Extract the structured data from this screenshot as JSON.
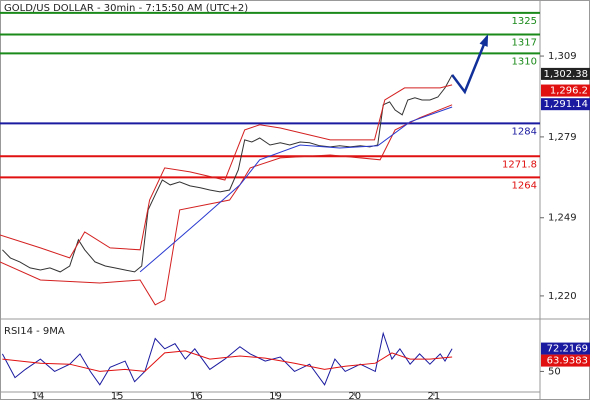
{
  "chart_data": [
    {
      "type": "line",
      "title": "GOLD/US DOLLAR - 30min - 7:15:50 AM (UTC+2)",
      "xlim": [
        -0.48,
        6.34
      ],
      "ylim": [
        1211.8,
        1329.8
      ],
      "yticks": [
        {
          "value": 1309,
          "label": "1,309"
        },
        {
          "value": 1279,
          "label": "1,279"
        },
        {
          "value": 1249,
          "label": "1,249"
        },
        {
          "value": 1220,
          "label": "1,220"
        }
      ],
      "levels": [
        {
          "value": 1325,
          "color": "#1a8a1a"
        },
        {
          "value": 1317,
          "color": "#1a8a1a"
        },
        {
          "value": 1310,
          "color": "#1a8a1a"
        },
        {
          "value": 1284,
          "color": "#1a1aa0"
        },
        {
          "value": 1271.8,
          "color": "#e01010"
        },
        {
          "value": 1264,
          "color": "#e01010"
        }
      ],
      "badges": [
        {
          "value": 1302.38,
          "label": "1,302.38",
          "color": "#222222"
        },
        {
          "value": 1296.2,
          "label": "1,296.2",
          "color": "#e01010"
        },
        {
          "value": 1291.14,
          "label": "1,291.14",
          "color": "#1a1aa0"
        }
      ],
      "series": [
        {
          "color": "#333333",
          "x": [
            -0.45,
            -0.35,
            -0.23,
            -0.1,
            0.03,
            0.15,
            0.28,
            0.4,
            0.51,
            0.59,
            0.72,
            0.85,
            0.97,
            1.1,
            1.22,
            1.31,
            1.39,
            1.48,
            1.57,
            1.67,
            1.79,
            1.92,
            2.05,
            2.17,
            2.3,
            2.42,
            2.53,
            2.61,
            2.7,
            2.8,
            2.93,
            3.06,
            3.18,
            3.31,
            3.43,
            3.56,
            3.69,
            3.81,
            3.94,
            4.07,
            4.19,
            4.29,
            4.36,
            4.44,
            4.51,
            4.6,
            4.67,
            4.76,
            4.85,
            4.95,
            5.05,
            5.14,
            5.23
          ],
          "values": [
            1237.1,
            1234.1,
            1232.6,
            1230.4,
            1229.6,
            1230.4,
            1228.9,
            1231.1,
            1240.8,
            1237.1,
            1232.6,
            1231.1,
            1230.4,
            1229.6,
            1228.9,
            1231.1,
            1251.9,
            1257.5,
            1263.0,
            1261.2,
            1262.3,
            1260.8,
            1260.1,
            1259.3,
            1258.6,
            1259.3,
            1266.8,
            1277.9,
            1277.1,
            1278.6,
            1276.0,
            1276.8,
            1276.0,
            1277.1,
            1276.8,
            1275.7,
            1275.3,
            1275.7,
            1275.3,
            1275.7,
            1275.3,
            1276.0,
            1290.9,
            1292.0,
            1289.0,
            1287.2,
            1292.7,
            1293.5,
            1292.7,
            1292.7,
            1293.8,
            1297.2,
            1302.0
          ]
        },
        {
          "color": "#d42020",
          "x": [
            -0.48,
            0.03,
            0.4,
            0.59,
            0.91,
            1.29,
            1.41,
            1.6,
            1.92,
            2.36,
            2.61,
            2.8,
            3.06,
            3.69,
            4.25,
            4.38,
            4.63,
            5.08,
            5.23
          ],
          "values": [
            1242.6,
            1237.8,
            1234.1,
            1243.7,
            1237.8,
            1237.1,
            1255.6,
            1267.5,
            1266.0,
            1263.0,
            1281.6,
            1283.5,
            1282.3,
            1277.9,
            1277.9,
            1292.7,
            1297.2,
            1297.2,
            1298.3
          ]
        },
        {
          "color": "#d42020",
          "x": [
            -0.48,
            0.03,
            0.78,
            1.29,
            1.48,
            1.6,
            1.79,
            2.42,
            2.55,
            2.68,
            3.06,
            3.69,
            4.32,
            4.51,
            4.82,
            5.23
          ],
          "values": [
            1232.6,
            1225.9,
            1224.8,
            1225.9,
            1216.7,
            1218.5,
            1251.9,
            1255.6,
            1261.2,
            1267.5,
            1271.2,
            1272.3,
            1270.5,
            1281.6,
            1286.1,
            1290.9
          ]
        },
        {
          "color": "#2a3ad0",
          "x": [
            1.29,
            1.54,
            2.05,
            2.55,
            2.8,
            3.31,
            3.81,
            4.29,
            4.7,
            5.23
          ],
          "values": [
            1228.9,
            1235.2,
            1248.2,
            1261.2,
            1270.5,
            1276.0,
            1274.9,
            1275.7,
            1284.6,
            1290.1
          ]
        },
        {
          "color": "#12309a",
          "style": "arrow",
          "x": [
            5.23,
            5.39,
            5.67
          ],
          "values": [
            1302.0,
            1295.7,
            1316.1
          ]
        }
      ]
    },
    {
      "type": "line",
      "title": "RSI14 - 9MA",
      "xlim": [
        -0.48,
        6.34
      ],
      "ylim": [
        30,
        100
      ],
      "xticks": [
        {
          "value": 0,
          "label": "14"
        },
        {
          "value": 1,
          "label": "15"
        },
        {
          "value": 2,
          "label": "16"
        },
        {
          "value": 3,
          "label": "19"
        },
        {
          "value": 4,
          "label": "20"
        },
        {
          "value": 5,
          "label": "21"
        }
      ],
      "yticks": [
        50
      ],
      "badges": [
        {
          "value": 72.2169,
          "label": "72.2169",
          "color": "#1a1aa0"
        },
        {
          "value": 63.9383,
          "label": "63.9383",
          "color": "#e01010"
        }
      ],
      "series": [
        {
          "color": "#1a1aa0",
          "x": [
            -0.45,
            -0.29,
            -0.16,
            0.03,
            0.21,
            0.4,
            0.53,
            0.66,
            0.78,
            0.91,
            1.1,
            1.22,
            1.35,
            1.48,
            1.6,
            1.73,
            1.86,
            1.98,
            2.17,
            2.36,
            2.55,
            2.68,
            2.87,
            3.06,
            3.24,
            3.43,
            3.62,
            3.75,
            3.88,
            4.07,
            4.26,
            4.36,
            4.47,
            4.57,
            4.7,
            4.82,
            4.95,
            5.08,
            5.14,
            5.23
          ],
          "values": [
            67,
            44,
            52,
            62,
            50,
            57,
            67,
            50,
            37,
            54,
            60,
            40,
            50,
            82,
            72,
            77,
            62,
            72,
            52,
            62,
            74,
            67,
            60,
            64,
            50,
            57,
            37,
            62,
            50,
            57,
            50,
            87,
            62,
            72,
            57,
            67,
            57,
            67,
            60,
            72
          ]
        },
        {
          "color": "#e01010",
          "x": [
            -0.45,
            0.03,
            0.4,
            0.78,
            1.1,
            1.35,
            1.6,
            1.86,
            2.17,
            2.55,
            2.87,
            3.24,
            3.62,
            3.88,
            4.26,
            4.47,
            4.7,
            4.95,
            5.23
          ],
          "values": [
            62,
            58,
            57,
            50,
            52,
            50,
            68,
            70,
            62,
            65,
            63,
            58,
            52,
            55,
            58,
            68,
            62,
            62,
            64
          ]
        }
      ]
    }
  ]
}
